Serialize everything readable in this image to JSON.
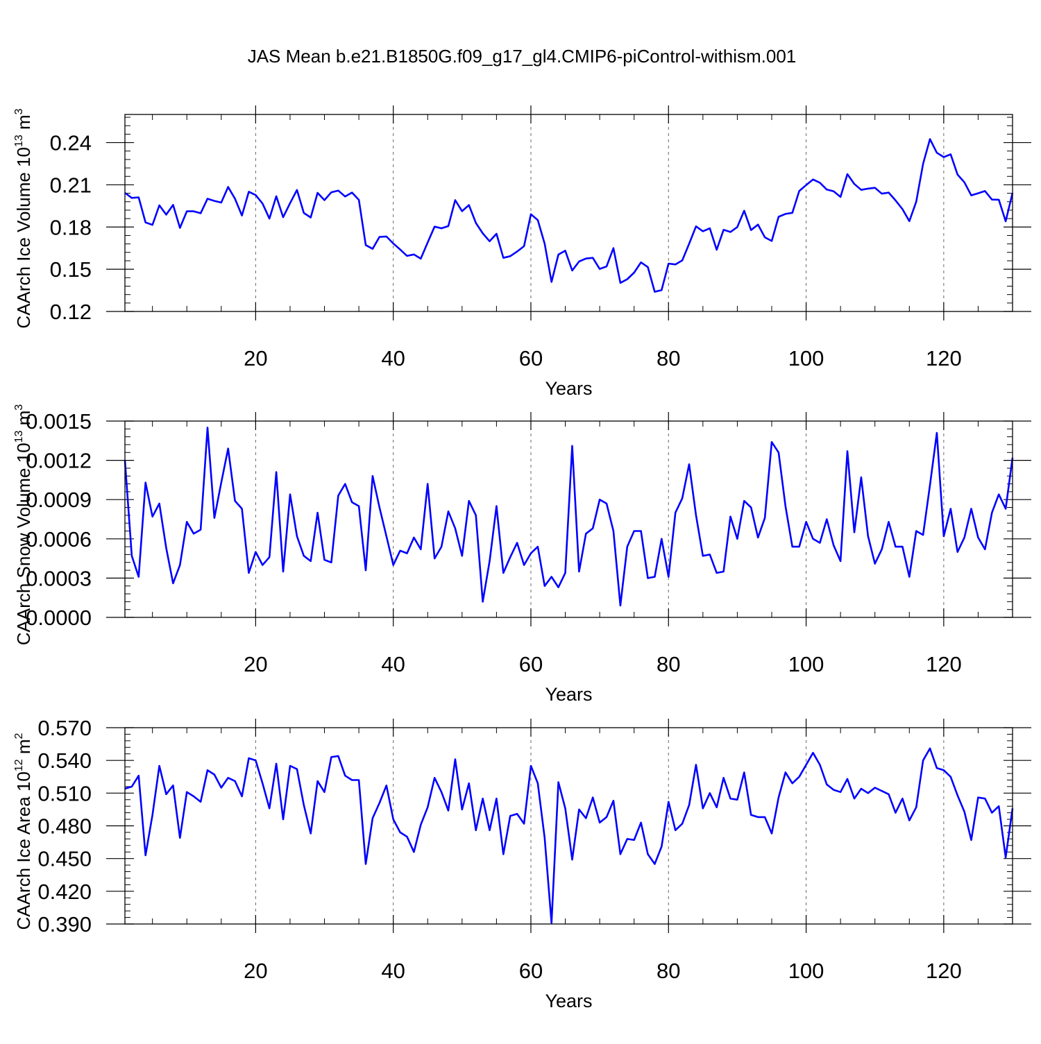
{
  "title": "JAS Mean b.e21.B1850G.f09_g17_gl4.CMIP6-piControl-withism.001",
  "colors": {
    "line": "#0000ff",
    "axis": "#000000",
    "grid": "#666666",
    "background": "#ffffff"
  },
  "chart_data": [
    {
      "type": "line",
      "title": "",
      "ylabel": "CAArch Ice Volume 10",
      "ylabel_exp": "13",
      "ylabel_unit": " m",
      "ylabel_unit_exp": "3",
      "xlabel": "Years",
      "xlim": [
        1,
        130
      ],
      "ylim": [
        0.12,
        0.26
      ],
      "xticks": [
        20,
        40,
        60,
        80,
        100,
        120
      ],
      "xtick_labels": [
        "20",
        "40",
        "60",
        "80",
        "100",
        "120"
      ],
      "yticks": [
        0.12,
        0.15,
        0.18,
        0.21,
        0.24
      ],
      "ytick_labels": [
        "0.12",
        "0.15",
        "0.18",
        "0.21",
        "0.24"
      ],
      "yminor": 0.006,
      "grid": "x-dashed",
      "series": [
        {
          "name": "CAArch Ice Volume",
          "values": [
            0.2043,
            0.2007,
            0.2011,
            0.1833,
            0.1815,
            0.1954,
            0.1888,
            0.1957,
            0.1794,
            0.1912,
            0.1912,
            0.1898,
            0.2001,
            0.1986,
            0.1974,
            0.2085,
            0.2001,
            0.1882,
            0.2051,
            0.2027,
            0.1967,
            0.186,
            0.2019,
            0.187,
            0.197,
            0.2063,
            0.19,
            0.1868,
            0.2043,
            0.1991,
            0.2047,
            0.2059,
            0.2017,
            0.2045,
            0.1993,
            0.1672,
            0.1645,
            0.173,
            0.1733,
            0.1683,
            0.164,
            0.1595,
            0.1605,
            0.1575,
            0.169,
            0.1803,
            0.1791,
            0.1807,
            0.1991,
            0.1913,
            0.1956,
            0.1829,
            0.1755,
            0.1699,
            0.1752,
            0.1581,
            0.1593,
            0.1626,
            0.1664,
            0.1891,
            0.1849,
            0.1682,
            0.141,
            0.1604,
            0.1632,
            0.1491,
            0.1555,
            0.1576,
            0.1581,
            0.1502,
            0.152,
            0.165,
            0.1403,
            0.1429,
            0.1476,
            0.1549,
            0.1515,
            0.134,
            0.1352,
            0.154,
            0.1534,
            0.1563,
            0.1681,
            0.1805,
            0.177,
            0.1791,
            0.1638,
            0.178,
            0.1765,
            0.18,
            0.1916,
            0.1778,
            0.1817,
            0.1727,
            0.1701,
            0.1873,
            0.1893,
            0.1901,
            0.2056,
            0.2098,
            0.2138,
            0.2115,
            0.2066,
            0.2054,
            0.2014,
            0.2176,
            0.2106,
            0.2064,
            0.2073,
            0.2079,
            0.2037,
            0.2045,
            0.1989,
            0.1927,
            0.1842,
            0.198,
            0.2249,
            0.2425,
            0.2328,
            0.2297,
            0.2317,
            0.2173,
            0.2118,
            0.2025,
            0.204,
            0.2056,
            0.1995,
            0.1994,
            0.1841,
            0.2043
          ]
        }
      ]
    },
    {
      "type": "line",
      "title": "",
      "ylabel": "CAArch Snow Volume 10",
      "ylabel_exp": "13",
      "ylabel_unit": " m",
      "ylabel_unit_exp": "3",
      "xlabel": "Years",
      "xlim": [
        1,
        130
      ],
      "ylim": [
        0.0,
        0.0015
      ],
      "xticks": [
        20,
        40,
        60,
        80,
        100,
        120
      ],
      "xtick_labels": [
        "20",
        "40",
        "60",
        "80",
        "100",
        "120"
      ],
      "yticks": [
        0.0,
        0.0003,
        0.0006,
        0.0009,
        0.0012,
        0.0015
      ],
      "ytick_labels": [
        "0.0000",
        "0.0003",
        "0.0006",
        "0.0009",
        "0.0012",
        "0.0015"
      ],
      "yminor": 6e-05,
      "grid": "x-dashed",
      "series": [
        {
          "name": "CAArch Snow Volume",
          "values": [
            0.0012,
            0.00047,
            0.00031,
            0.00103,
            0.00077,
            0.00087,
            0.00053,
            0.00026,
            0.0004,
            0.00073,
            0.00064,
            0.00067,
            0.00145,
            0.00076,
            0.00103,
            0.00129,
            0.00089,
            0.00083,
            0.00034,
            0.0005,
            0.0004,
            0.00046,
            0.00111,
            0.00035,
            0.00094,
            0.00062,
            0.00047,
            0.00043,
            0.0008,
            0.00044,
            0.00042,
            0.00093,
            0.00102,
            0.00088,
            0.00085,
            0.00036,
            0.00108,
            0.00084,
            0.00062,
            0.0004,
            0.00051,
            0.00049,
            0.00061,
            0.00052,
            0.00102,
            0.00045,
            0.00054,
            0.00081,
            0.00068,
            0.00047,
            0.00089,
            0.00078,
            0.00012,
            0.00043,
            0.00085,
            0.00034,
            0.00046,
            0.00057,
            0.0004,
            0.00049,
            0.00054,
            0.00024,
            0.00031,
            0.00023,
            0.00034,
            0.00131,
            0.00035,
            0.00064,
            0.00068,
            0.0009,
            0.00087,
            0.00066,
            9e-05,
            0.00054,
            0.00066,
            0.00066,
            0.0003,
            0.00031,
            0.0006,
            0.00031,
            0.0008,
            0.00091,
            0.00117,
            0.00078,
            0.00047,
            0.00048,
            0.00034,
            0.00035,
            0.00077,
            0.0006,
            0.00089,
            0.00084,
            0.00061,
            0.00076,
            0.00134,
            0.00126,
            0.00085,
            0.00054,
            0.00054,
            0.00073,
            0.0006,
            0.00057,
            0.00075,
            0.00055,
            0.00043,
            0.00127,
            0.00065,
            0.00107,
            0.00062,
            0.00041,
            0.00052,
            0.00073,
            0.00054,
            0.00054,
            0.00031,
            0.00066,
            0.00063,
            0.00101,
            0.00141,
            0.00062,
            0.00083,
            0.0005,
            0.00061,
            0.00083,
            0.00061,
            0.00052,
            0.0008,
            0.00094,
            0.00083,
            0.00122
          ]
        }
      ]
    },
    {
      "type": "line",
      "title": "",
      "ylabel": "CAArch Ice Area 10",
      "ylabel_exp": "12",
      "ylabel_unit": " m",
      "ylabel_unit_exp": "2",
      "xlabel": "Years",
      "xlim": [
        1,
        130
      ],
      "ylim": [
        0.39,
        0.57
      ],
      "xticks": [
        20,
        40,
        60,
        80,
        100,
        120
      ],
      "xtick_labels": [
        "20",
        "40",
        "60",
        "80",
        "100",
        "120"
      ],
      "yticks": [
        0.39,
        0.42,
        0.45,
        0.48,
        0.51,
        0.54,
        0.57
      ],
      "ytick_labels": [
        "0.390",
        "0.420",
        "0.450",
        "0.480",
        "0.510",
        "0.540",
        "0.570"
      ],
      "yminor": 0.006,
      "grid": "x-dashed",
      "series": [
        {
          "name": "CAArch Ice Area",
          "values": [
            0.514,
            0.516,
            0.526,
            0.453,
            0.49,
            0.535,
            0.509,
            0.517,
            0.469,
            0.511,
            0.507,
            0.502,
            0.531,
            0.527,
            0.515,
            0.524,
            0.521,
            0.507,
            0.542,
            0.54,
            0.519,
            0.496,
            0.537,
            0.486,
            0.535,
            0.532,
            0.499,
            0.473,
            0.521,
            0.511,
            0.543,
            0.544,
            0.526,
            0.522,
            0.522,
            0.445,
            0.487,
            0.501,
            0.517,
            0.486,
            0.474,
            0.47,
            0.456,
            0.481,
            0.497,
            0.524,
            0.511,
            0.494,
            0.541,
            0.495,
            0.519,
            0.476,
            0.505,
            0.476,
            0.505,
            0.454,
            0.489,
            0.491,
            0.482,
            0.535,
            0.519,
            0.469,
            0.391,
            0.52,
            0.496,
            0.449,
            0.495,
            0.487,
            0.506,
            0.483,
            0.488,
            0.503,
            0.454,
            0.468,
            0.467,
            0.483,
            0.454,
            0.445,
            0.461,
            0.502,
            0.476,
            0.482,
            0.499,
            0.536,
            0.496,
            0.51,
            0.497,
            0.524,
            0.505,
            0.504,
            0.529,
            0.49,
            0.488,
            0.488,
            0.473,
            0.506,
            0.529,
            0.519,
            0.525,
            0.536,
            0.547,
            0.536,
            0.518,
            0.513,
            0.511,
            0.523,
            0.505,
            0.514,
            0.51,
            0.515,
            0.512,
            0.509,
            0.492,
            0.505,
            0.485,
            0.497,
            0.54,
            0.551,
            0.533,
            0.531,
            0.525,
            0.508,
            0.493,
            0.467,
            0.506,
            0.505,
            0.492,
            0.498,
            0.451,
            0.496
          ]
        }
      ]
    }
  ]
}
